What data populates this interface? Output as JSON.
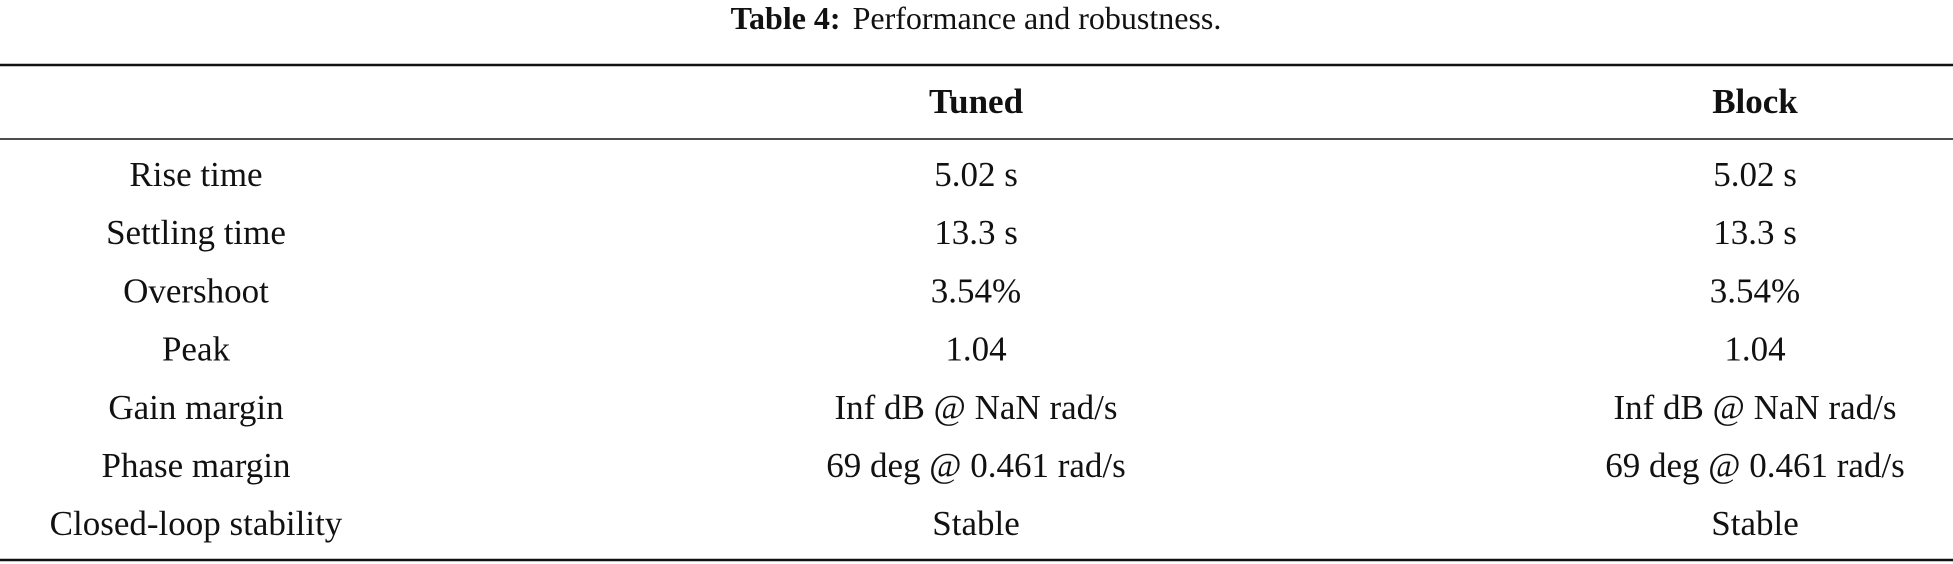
{
  "caption": {
    "label": "Table 4:",
    "text": "Performance and robustness."
  },
  "table": {
    "columns": [
      "Tuned",
      "Block"
    ],
    "rows": [
      [
        "Rise time",
        "5.02 s",
        "5.02 s"
      ],
      [
        "Settling time",
        "13.3 s",
        "13.3 s"
      ],
      [
        "Overshoot",
        "3.54%",
        "3.54%"
      ],
      [
        "Peak",
        "1.04",
        "1.04"
      ],
      [
        "Gain margin",
        "Inf dB @ NaN rad/s",
        "Inf dB @ NaN rad/s"
      ],
      [
        "Phase margin",
        "69 deg @ 0.461 rad/s",
        "69 deg @ 0.461 rad/s"
      ],
      [
        "Closed-loop stability",
        "Stable",
        "Stable"
      ]
    ]
  }
}
